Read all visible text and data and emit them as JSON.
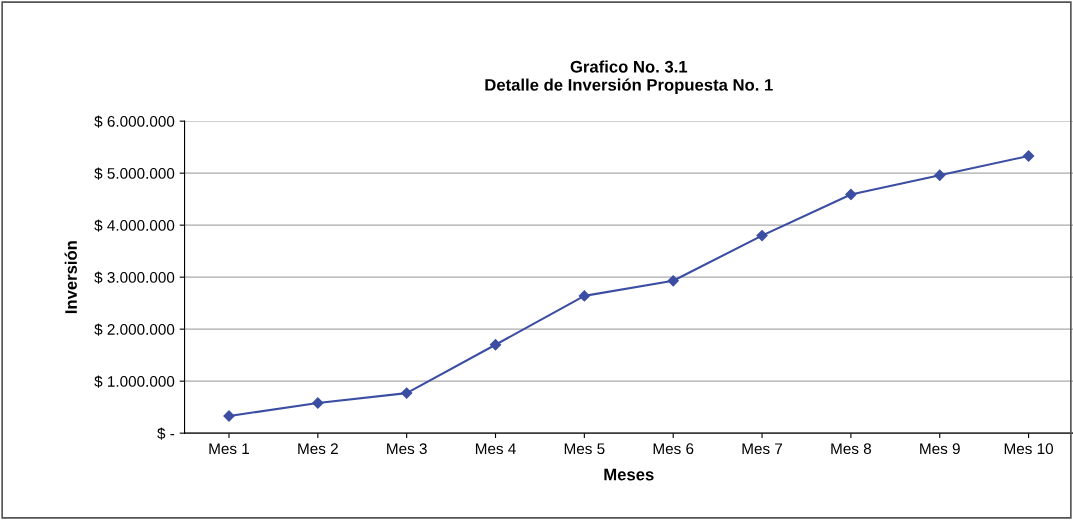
{
  "chart_data": {
    "type": "line",
    "title": "Grafico No. 3.1\nDetalle de Inversión Propuesta No. 1",
    "xlabel": "Meses",
    "ylabel": "Inversión",
    "categories": [
      "Mes 1",
      "Mes 2",
      "Mes 3",
      "Mes 4",
      "Mes 5",
      "Mes 6",
      "Mes 7",
      "Mes 8",
      "Mes 9",
      "Mes 10"
    ],
    "series": [
      {
        "color": "#3b4ea3",
        "values": [
          330000,
          580000,
          770000,
          1700000,
          2640000,
          2930000,
          3800000,
          4590000,
          4960000,
          5330000
        ]
      }
    ],
    "ylim": [
      0,
      6000000
    ],
    "yticks": [
      {
        "value": 0,
        "label": "$ -"
      },
      {
        "value": 1000000,
        "label": "$ 1.000.000"
      },
      {
        "value": 2000000,
        "label": "$ 2.000.000"
      },
      {
        "value": 3000000,
        "label": "$ 3.000.000"
      },
      {
        "value": 4000000,
        "label": "$ 4.000.000"
      },
      {
        "value": 5000000,
        "label": "$ 5.000.000"
      },
      {
        "value": 6000000,
        "label": "$ 6.000.000"
      }
    ],
    "grid": "y",
    "marker": "diamond",
    "line_style": "solid",
    "legend": false
  }
}
